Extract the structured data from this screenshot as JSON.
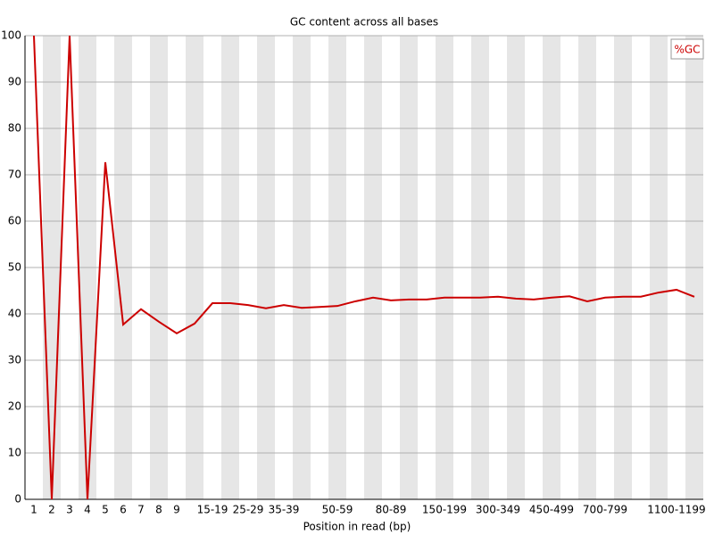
{
  "chart_data": {
    "type": "line",
    "title": "GC content across all bases",
    "xlabel": "Position in read (bp)",
    "categories": [
      "1",
      "2",
      "3",
      "4",
      "5",
      "6",
      "7",
      "8",
      "9",
      null,
      "15-19",
      null,
      "25-29",
      null,
      "35-39",
      null,
      null,
      "50-59",
      null,
      null,
      "80-89",
      null,
      null,
      "150-199",
      null,
      null,
      "300-349",
      null,
      null,
      "450-499",
      null,
      null,
      "700-799",
      null,
      null,
      null,
      "1100-1199",
      null
    ],
    "series": [
      {
        "name": "%GC",
        "color": "#cc0000",
        "values": [
          100,
          0,
          100,
          0,
          72.7,
          37.7,
          41,
          38.3,
          35.8,
          37.9,
          42.3,
          42.3,
          41.9,
          41.2,
          41.9,
          41.3,
          41.5,
          41.7,
          42.7,
          43.5,
          42.9,
          43.1,
          43.1,
          43.5,
          43.5,
          43.5,
          43.7,
          43.3,
          43.1,
          43.5,
          43.8,
          42.7,
          43.5,
          43.7,
          43.7,
          44.6,
          45.2,
          43.7
        ]
      }
    ],
    "ylim": [
      0,
      100
    ],
    "yticks": [
      0,
      10,
      20,
      30,
      40,
      50,
      60,
      70,
      80,
      90,
      100
    ],
    "grid": true,
    "legend": "top-right"
  }
}
